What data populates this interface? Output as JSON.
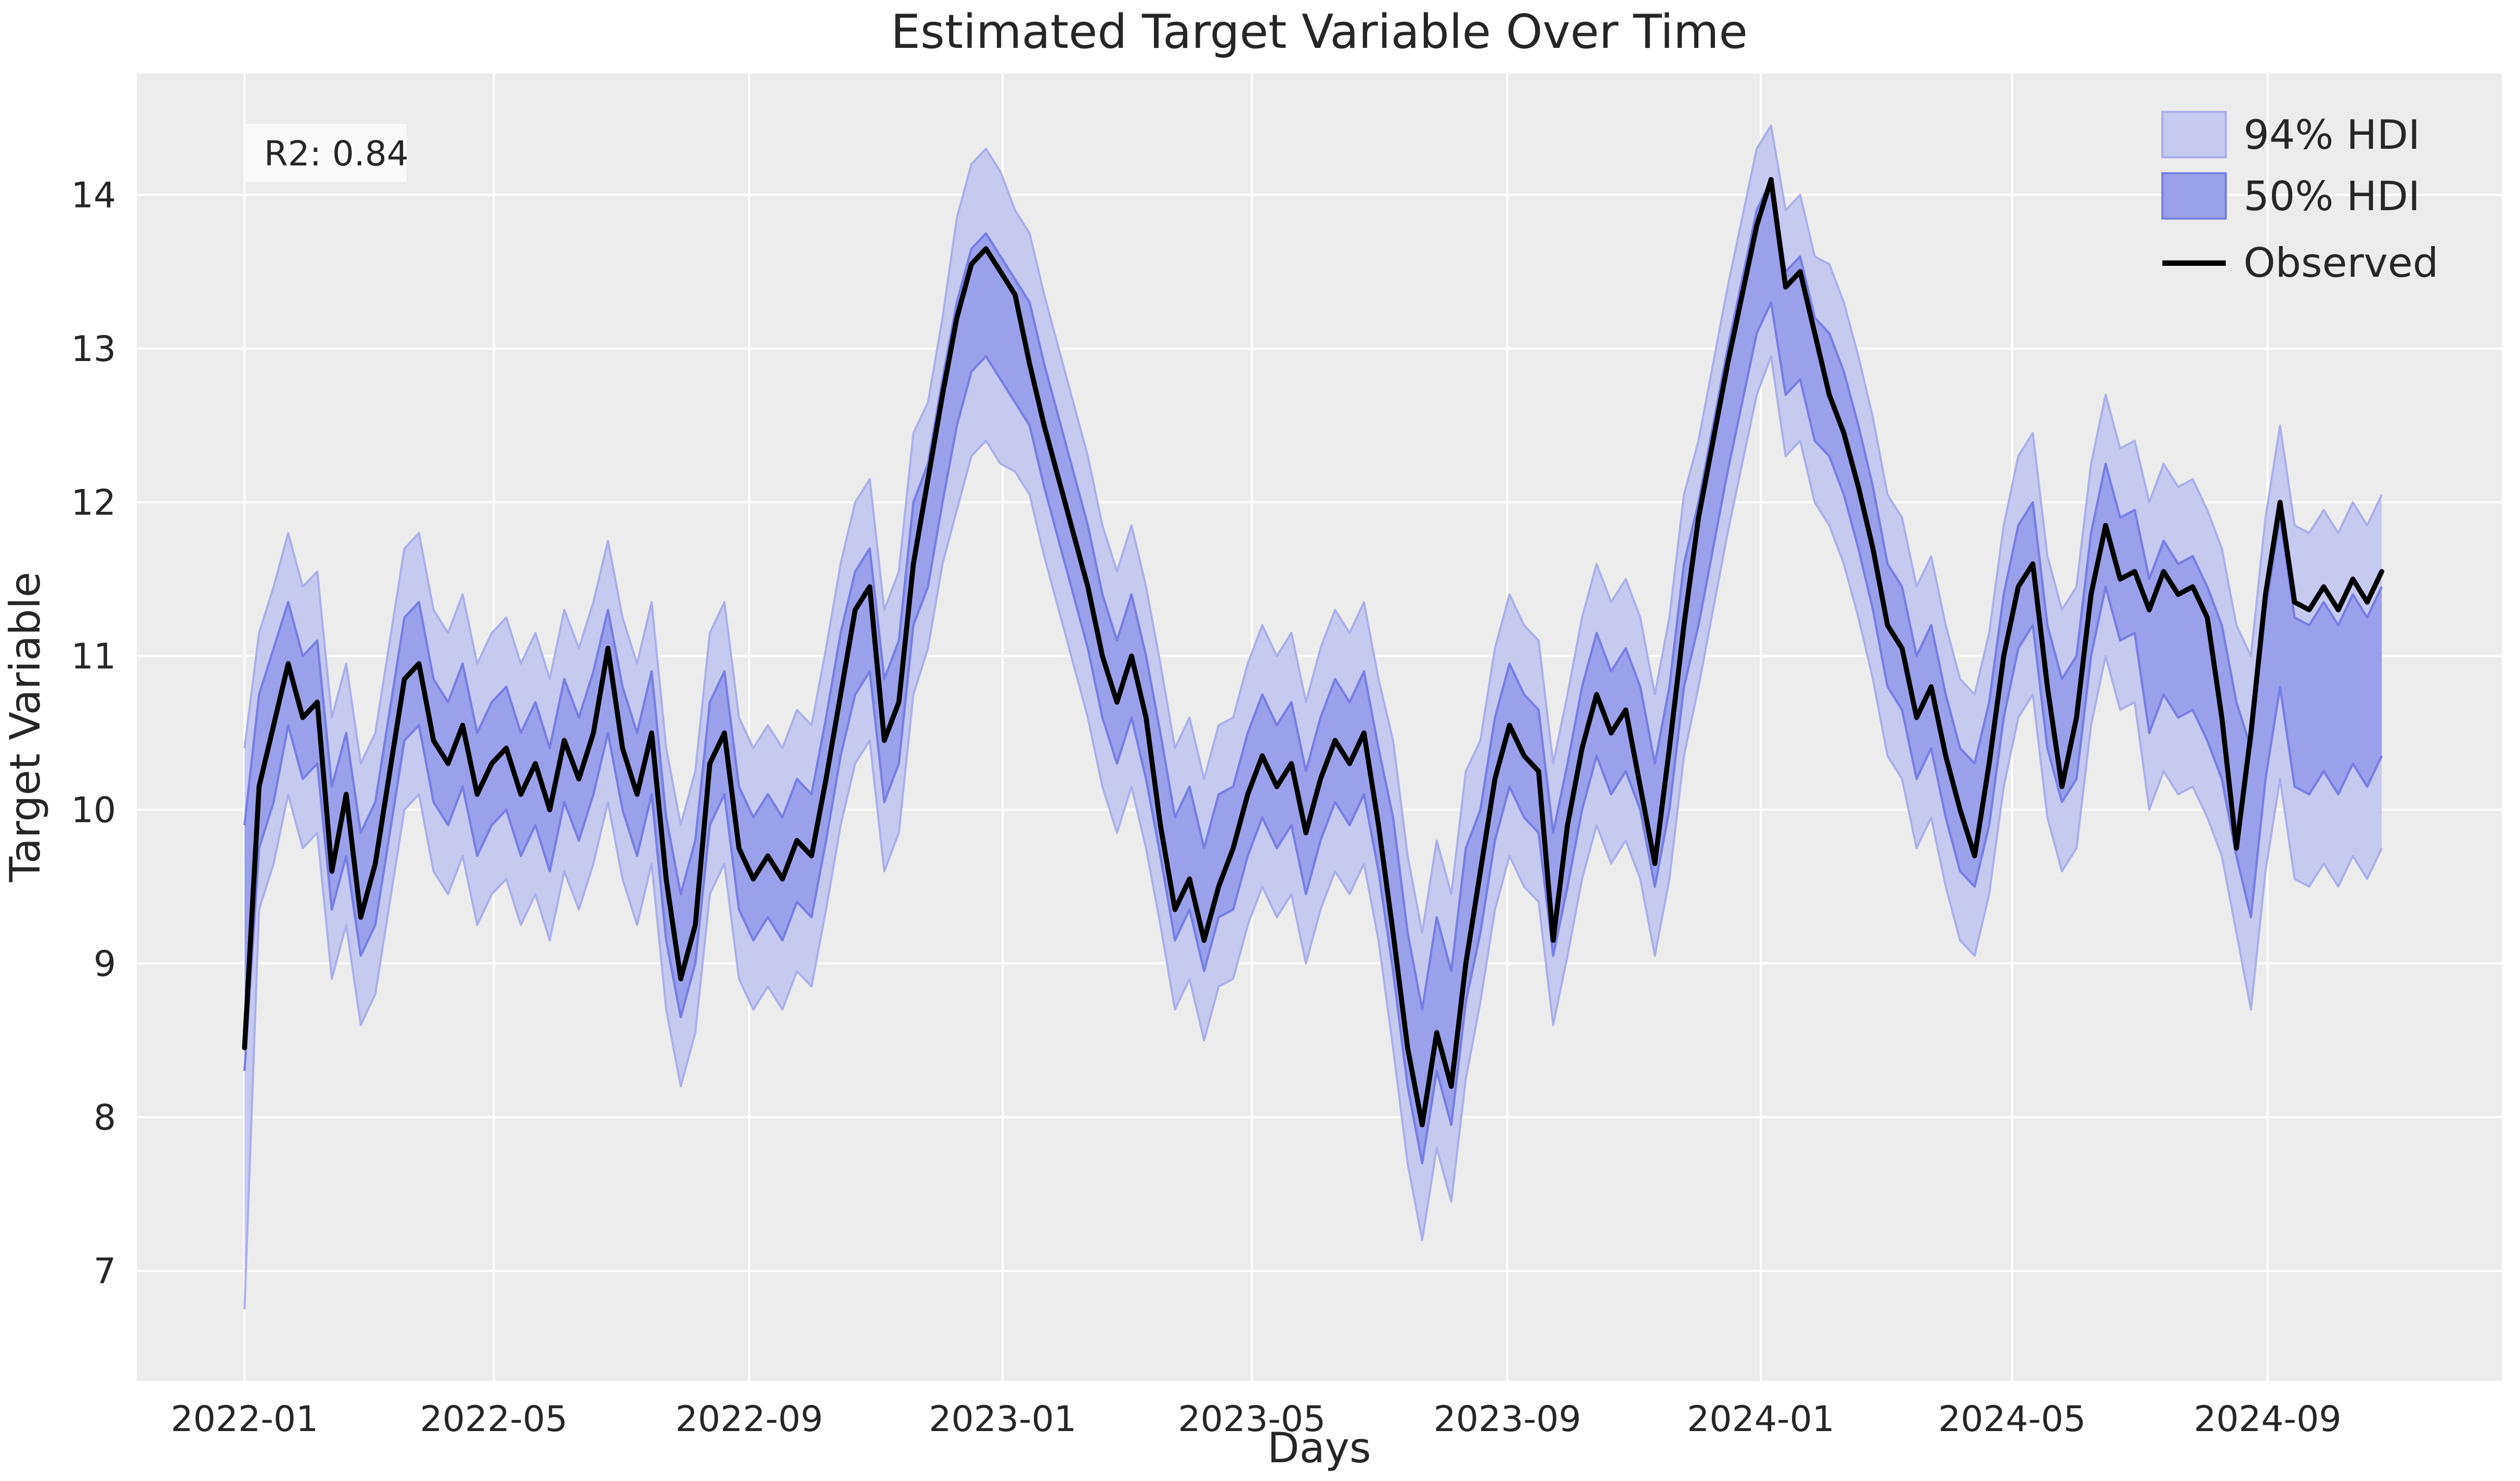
{
  "figure": {
    "title": "Estimated Target Variable Over Time",
    "xlabel": "Days",
    "ylabel": "Target Variable",
    "annotation_r2": "R2: 0.84",
    "background_color": "#ffffff",
    "plot_background_color": "#ececec",
    "grid_color": "#ffffff",
    "text_color": "#262626",
    "annotation_box_color": "#fafafa"
  },
  "legend": {
    "items": [
      {
        "label": "94% HDI",
        "type": "patch",
        "fill": "#c6c9f0",
        "edge": "#a9aeeb"
      },
      {
        "label": "50% HDI",
        "type": "patch",
        "fill": "#9aa0e9",
        "edge": "#767ee3"
      },
      {
        "label": "Observed",
        "type": "line",
        "color": "#000000"
      }
    ]
  },
  "chart_data": {
    "type": "line",
    "title": "Estimated Target Variable Over Time",
    "xlabel": "Days",
    "ylabel": "Target Variable",
    "r2": 0.84,
    "grid": true,
    "legend_position": "upper right",
    "x_start_date": "2022-01-01",
    "cadence_days": 7,
    "n_points": 148,
    "x_tick_labels": [
      "2022-01",
      "2022-05",
      "2022-09",
      "2023-01",
      "2023-05",
      "2023-09",
      "2024-01",
      "2024-05",
      "2024-09"
    ],
    "x_tick_day_offsets": [
      0,
      120,
      243,
      365,
      485,
      608,
      730,
      851,
      974
    ],
    "y_ticks": [
      7,
      8,
      9,
      10,
      11,
      12,
      13,
      14
    ],
    "ylim": [
      6.28,
      14.84
    ],
    "xlim_day_offsets": [
      -52,
      1087
    ],
    "series": [
      {
        "name": "Observed",
        "style": "black line"
      },
      {
        "name": "50% HDI",
        "style": "inner band"
      },
      {
        "name": "94% HDI",
        "style": "outer band"
      }
    ],
    "observed": [
      8.45,
      10.15,
      10.55,
      10.95,
      10.6,
      10.7,
      9.6,
      10.1,
      9.3,
      9.65,
      10.25,
      10.85,
      10.95,
      10.45,
      10.3,
      10.55,
      10.1,
      10.3,
      10.4,
      10.1,
      10.3,
      10.0,
      10.45,
      10.2,
      10.5,
      11.05,
      10.4,
      10.1,
      10.5,
      9.55,
      8.9,
      9.25,
      10.3,
      10.5,
      9.75,
      9.55,
      9.7,
      9.55,
      9.8,
      9.7,
      10.2,
      10.75,
      11.3,
      11.45,
      10.45,
      10.7,
      11.6,
      12.15,
      12.7,
      13.2,
      13.55,
      13.65,
      13.5,
      13.35,
      12.9,
      12.5,
      12.15,
      11.8,
      11.45,
      11.0,
      10.7,
      11.0,
      10.6,
      9.9,
      9.35,
      9.55,
      9.15,
      9.5,
      9.75,
      10.1,
      10.35,
      10.15,
      10.3,
      9.85,
      10.2,
      10.45,
      10.3,
      10.5,
      9.9,
      9.2,
      8.45,
      7.95,
      8.55,
      8.2,
      9.0,
      9.6,
      10.2,
      10.55,
      10.35,
      10.25,
      9.15,
      9.9,
      10.4,
      10.75,
      10.5,
      10.65,
      10.15,
      9.65,
      10.4,
      11.2,
      11.9,
      12.4,
      12.9,
      13.35,
      13.8,
      14.1,
      13.4,
      13.5,
      13.1,
      12.7,
      12.45,
      12.1,
      11.7,
      11.2,
      11.05,
      10.6,
      10.8,
      10.35,
      10.0,
      9.7,
      10.3,
      11.0,
      11.45,
      11.6,
      10.8,
      10.15,
      10.6,
      11.4,
      11.85,
      11.5,
      11.55,
      11.3,
      11.55,
      11.4,
      11.45,
      11.25,
      10.6,
      9.75,
      10.5,
      11.4,
      12.0,
      11.35,
      11.3,
      11.45,
      11.3,
      11.5,
      11.35,
      11.55
    ],
    "hdi_mean": [
      9.2,
      10.25,
      10.55,
      10.95,
      10.6,
      10.7,
      9.75,
      10.1,
      9.45,
      9.65,
      10.25,
      10.85,
      10.95,
      10.45,
      10.3,
      10.55,
      10.1,
      10.3,
      10.4,
      10.1,
      10.3,
      10.0,
      10.45,
      10.2,
      10.5,
      10.9,
      10.4,
      10.1,
      10.5,
      9.55,
      9.05,
      9.4,
      10.3,
      10.5,
      9.75,
      9.55,
      9.7,
      9.55,
      9.8,
      9.7,
      10.2,
      10.75,
      11.15,
      11.3,
      10.45,
      10.7,
      11.6,
      11.85,
      12.4,
      12.9,
      13.25,
      13.35,
      13.2,
      13.05,
      12.9,
      12.5,
      12.15,
      11.8,
      11.45,
      11.0,
      10.7,
      11.0,
      10.6,
      10.1,
      9.55,
      9.75,
      9.35,
      9.7,
      9.75,
      10.1,
      10.35,
      10.15,
      10.3,
      9.85,
      10.2,
      10.45,
      10.3,
      10.5,
      10.0,
      9.45,
      8.7,
      8.2,
      8.8,
      8.45,
      9.25,
      9.6,
      10.2,
      10.55,
      10.35,
      10.25,
      9.45,
      9.9,
      10.4,
      10.75,
      10.5,
      10.65,
      10.4,
      9.9,
      10.4,
      11.2,
      11.6,
      12.1,
      12.6,
      13.05,
      13.5,
      13.7,
      13.1,
      13.2,
      12.8,
      12.7,
      12.45,
      12.1,
      11.7,
      11.2,
      11.05,
      10.6,
      10.8,
      10.35,
      10.0,
      9.9,
      10.3,
      11.0,
      11.45,
      11.6,
      10.8,
      10.45,
      10.6,
      11.4,
      11.85,
      11.5,
      11.55,
      11.0,
      11.25,
      11.1,
      11.15,
      10.95,
      10.7,
      10.2,
      9.85,
      10.75,
      11.35,
      10.7,
      10.65,
      10.8,
      10.65,
      10.85,
      10.7,
      10.9
    ],
    "hdi50_halfwidth": [
      0.8,
      0.5,
      0.5,
      0.4,
      0.4,
      0.4,
      0.4,
      0.4,
      0.4,
      0.4,
      0.4,
      0.4,
      0.4,
      0.4,
      0.4,
      0.4,
      0.4,
      0.4,
      0.4,
      0.4,
      0.4,
      0.4,
      0.4,
      0.4,
      0.4,
      0.4,
      0.4,
      0.4,
      0.4,
      0.4,
      0.4,
      0.4,
      0.4,
      0.4,
      0.4,
      0.4,
      0.4,
      0.4,
      0.4,
      0.4,
      0.4,
      0.4,
      0.4,
      0.4,
      0.4,
      0.4,
      0.4,
      0.4,
      0.4,
      0.4,
      0.4,
      0.4,
      0.4,
      0.4,
      0.4,
      0.4,
      0.4,
      0.4,
      0.4,
      0.4,
      0.4,
      0.4,
      0.4,
      0.4,
      0.4,
      0.4,
      0.4,
      0.4,
      0.4,
      0.4,
      0.4,
      0.4,
      0.4,
      0.4,
      0.4,
      0.4,
      0.4,
      0.4,
      0.4,
      0.5,
      0.5,
      0.5,
      0.5,
      0.5,
      0.5,
      0.4,
      0.4,
      0.4,
      0.4,
      0.4,
      0.4,
      0.4,
      0.4,
      0.4,
      0.4,
      0.4,
      0.4,
      0.4,
      0.4,
      0.4,
      0.4,
      0.4,
      0.4,
      0.4,
      0.4,
      0.4,
      0.4,
      0.4,
      0.4,
      0.4,
      0.4,
      0.4,
      0.4,
      0.4,
      0.4,
      0.4,
      0.4,
      0.4,
      0.4,
      0.4,
      0.4,
      0.4,
      0.4,
      0.4,
      0.4,
      0.4,
      0.4,
      0.4,
      0.4,
      0.4,
      0.4,
      0.5,
      0.5,
      0.5,
      0.5,
      0.5,
      0.5,
      0.5,
      0.55,
      0.55,
      0.55,
      0.55,
      0.55,
      0.55,
      0.55,
      0.55,
      0.55,
      0.55
    ],
    "hdi94_halfwidth": [
      1.7,
      0.9,
      0.9,
      0.85,
      0.85,
      0.85,
      0.85,
      0.85,
      0.85,
      0.85,
      0.85,
      0.85,
      0.85,
      0.85,
      0.85,
      0.85,
      0.85,
      0.85,
      0.85,
      0.85,
      0.85,
      0.85,
      0.85,
      0.85,
      0.85,
      0.85,
      0.85,
      0.85,
      0.85,
      0.85,
      0.85,
      0.85,
      0.85,
      0.85,
      0.85,
      0.85,
      0.85,
      0.85,
      0.85,
      0.85,
      0.85,
      0.85,
      0.85,
      0.85,
      0.85,
      0.85,
      0.85,
      0.8,
      0.8,
      0.95,
      0.95,
      0.95,
      0.95,
      0.85,
      0.85,
      0.85,
      0.85,
      0.85,
      0.85,
      0.85,
      0.85,
      0.85,
      0.85,
      0.85,
      0.85,
      0.85,
      0.85,
      0.85,
      0.85,
      0.85,
      0.85,
      0.85,
      0.85,
      0.85,
      0.85,
      0.85,
      0.85,
      0.85,
      0.85,
      1.0,
      1.0,
      1.0,
      1.0,
      1.0,
      1.0,
      0.85,
      0.85,
      0.85,
      0.85,
      0.85,
      0.85,
      0.85,
      0.85,
      0.85,
      0.85,
      0.85,
      0.85,
      0.85,
      0.85,
      0.85,
      0.8,
      0.8,
      0.8,
      0.8,
      0.8,
      0.75,
      0.8,
      0.8,
      0.8,
      0.85,
      0.85,
      0.85,
      0.85,
      0.85,
      0.85,
      0.85,
      0.85,
      0.85,
      0.85,
      0.85,
      0.85,
      0.85,
      0.85,
      0.85,
      0.85,
      0.85,
      0.85,
      0.85,
      0.85,
      0.85,
      0.85,
      1.0,
      1.0,
      1.0,
      1.0,
      1.0,
      1.0,
      1.0,
      1.15,
      1.15,
      1.15,
      1.15,
      1.15,
      1.15,
      1.15,
      1.15,
      1.15,
      1.15
    ],
    "start_point_override": {
      "index": 0,
      "hdi94_lower": 6.75,
      "hdi50_lower": 8.3,
      "hdi50_upper": 9.9,
      "hdi94_upper": 10.4
    }
  }
}
